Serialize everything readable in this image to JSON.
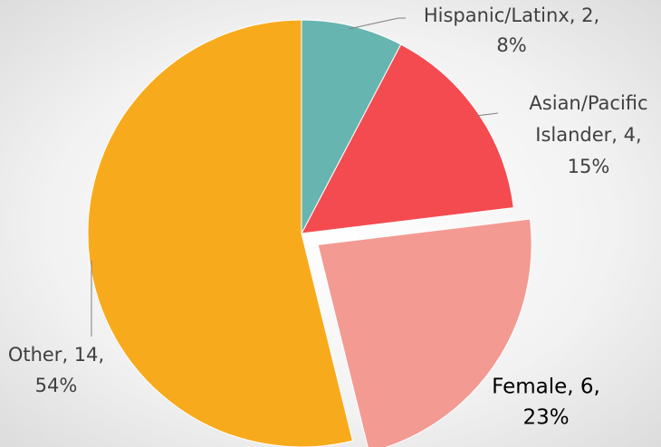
{
  "chart_data": {
    "type": "pie",
    "values": [
      2,
      4,
      6,
      14
    ],
    "labels": [
      [
        "Hispanic/Latinx, 2,",
        "8%"
      ],
      [
        "Asian/Pacific",
        "Islander, 4,",
        "15%"
      ],
      [
        "Female, 6,",
        "23%"
      ],
      [
        "Other, 14,",
        "54%"
      ]
    ],
    "colors": [
      "#67b5b1",
      "#f44b50",
      "#f39a93",
      "#f8aa1d"
    ],
    "explode": [
      false,
      false,
      true,
      false
    ]
  }
}
